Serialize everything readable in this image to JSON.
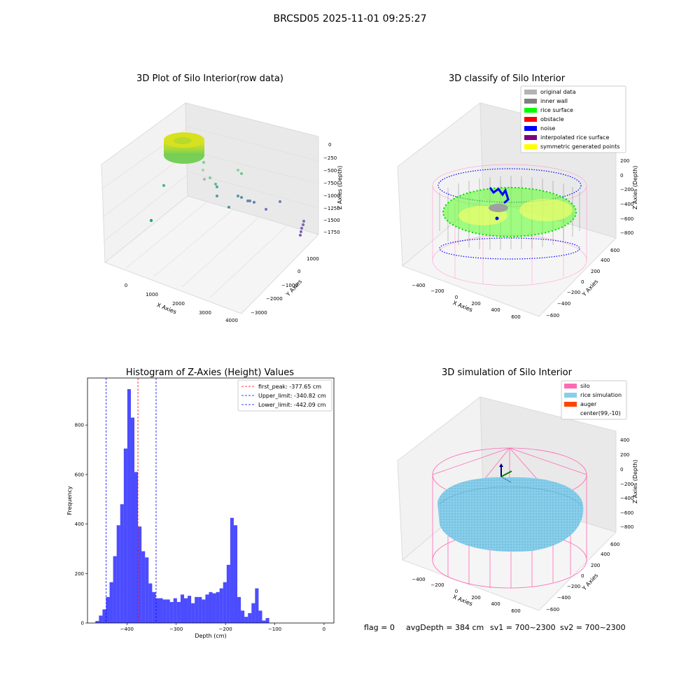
{
  "suptitle": "BRCSD05 2025-11-01 09:25:27",
  "panels": {
    "raw": {
      "title": "3D Plot of Silo Interior(row data)",
      "xlabel": "X Axies",
      "ylabel": "Y Axies",
      "zlabel": "Z Axies (Depth)",
      "xticks": [
        "0",
        "1000",
        "2000",
        "3000",
        "4000"
      ],
      "yticks": [
        "1000",
        "0",
        "−1000",
        "−2000",
        "−3000"
      ],
      "zticks": [
        "0",
        "−250",
        "−500",
        "−750",
        "−1000",
        "−1250",
        "−1500",
        "−1750"
      ]
    },
    "classify": {
      "title": "3D classify of Silo Interior",
      "xlabel": "X Axies",
      "ylabel": "Y Axies",
      "zlabel": "Z Axies (Depth)",
      "xticks": [
        "−400",
        "−200",
        "0",
        "200",
        "400",
        "600"
      ],
      "yticks": [
        "600",
        "400",
        "200",
        "0",
        "−200",
        "−400",
        "−600"
      ],
      "zticks": [
        "200",
        "0",
        "−200",
        "−400",
        "−600",
        "−800"
      ],
      "legend": [
        {
          "label": "original data",
          "color": "#b3b3b3"
        },
        {
          "label": "inner wall",
          "color": "#808080"
        },
        {
          "label": "rice surface",
          "color": "#00ff00"
        },
        {
          "label": "obstacle",
          "color": "#ff0000"
        },
        {
          "label": "noise",
          "color": "#0000ff"
        },
        {
          "label": "interpolated rice surface",
          "color": "#800080"
        },
        {
          "label": "symmetric generated points",
          "color": "#ffff00"
        }
      ]
    },
    "simulation": {
      "title": "3D simulation of Silo Interior",
      "xlabel": "X Axies",
      "ylabel": "Y Axies",
      "zlabel": "Z Axies (Depth)",
      "xticks": [
        "−400",
        "−200",
        "0",
        "200",
        "400",
        "600"
      ],
      "yticks": [
        "600",
        "400",
        "200",
        "0",
        "−200",
        "−400",
        "−600"
      ],
      "zticks": [
        "400",
        "200",
        "0",
        "−200",
        "−400",
        "−600",
        "−800"
      ],
      "legend": [
        {
          "label": "silo",
          "color": "#ff69b4"
        },
        {
          "label": "rice simulation",
          "color": "#87ceeb"
        },
        {
          "label": "auger",
          "color": "#ff4500"
        },
        {
          "label": "center(99,-10)",
          "color": ""
        }
      ]
    }
  },
  "footer": {
    "flag": "flag = 0",
    "avg": "avgDepth = 384 cm",
    "sv1": "sv1 = 700~2300",
    "sv2": "sv2 = 700~2300"
  },
  "chart_data": [
    {
      "type": "bar",
      "title": "Histogram of Z-Axies (Height) Values",
      "xlabel": "Depth (cm)",
      "ylabel": "Frequency",
      "xlim": [
        -480,
        20
      ],
      "ylim": [
        0,
        990
      ],
      "xticks": [
        -400,
        -300,
        -200,
        -100,
        0
      ],
      "xtick_labels": [
        "−400",
        "−300",
        "−200",
        "−100",
        "0"
      ],
      "yticks": [
        0,
        200,
        400,
        600,
        800
      ],
      "bar_color": "#0000ff",
      "bin_start": -464,
      "bin_width": 7.2,
      "values": [
        8,
        30,
        55,
        105,
        165,
        270,
        395,
        480,
        705,
        945,
        830,
        610,
        390,
        290,
        265,
        160,
        125,
        100,
        100,
        95,
        95,
        85,
        100,
        85,
        115,
        100,
        110,
        80,
        105,
        105,
        95,
        115,
        125,
        120,
        125,
        140,
        165,
        235,
        425,
        395,
        105,
        50,
        25,
        40,
        80,
        140,
        50,
        10,
        20
      ],
      "vlines": [
        {
          "label": "first_peak: -377.65 cm",
          "value": -377.65,
          "color": "#ff0000"
        },
        {
          "label": "Upper_limit: -340.82 cm",
          "value": -340.82,
          "color": "#0000ff"
        },
        {
          "label": "Lower_limit: -442.09 cm",
          "value": -442.09,
          "color": "#0000ff"
        }
      ],
      "legend_position": "top-right"
    }
  ]
}
